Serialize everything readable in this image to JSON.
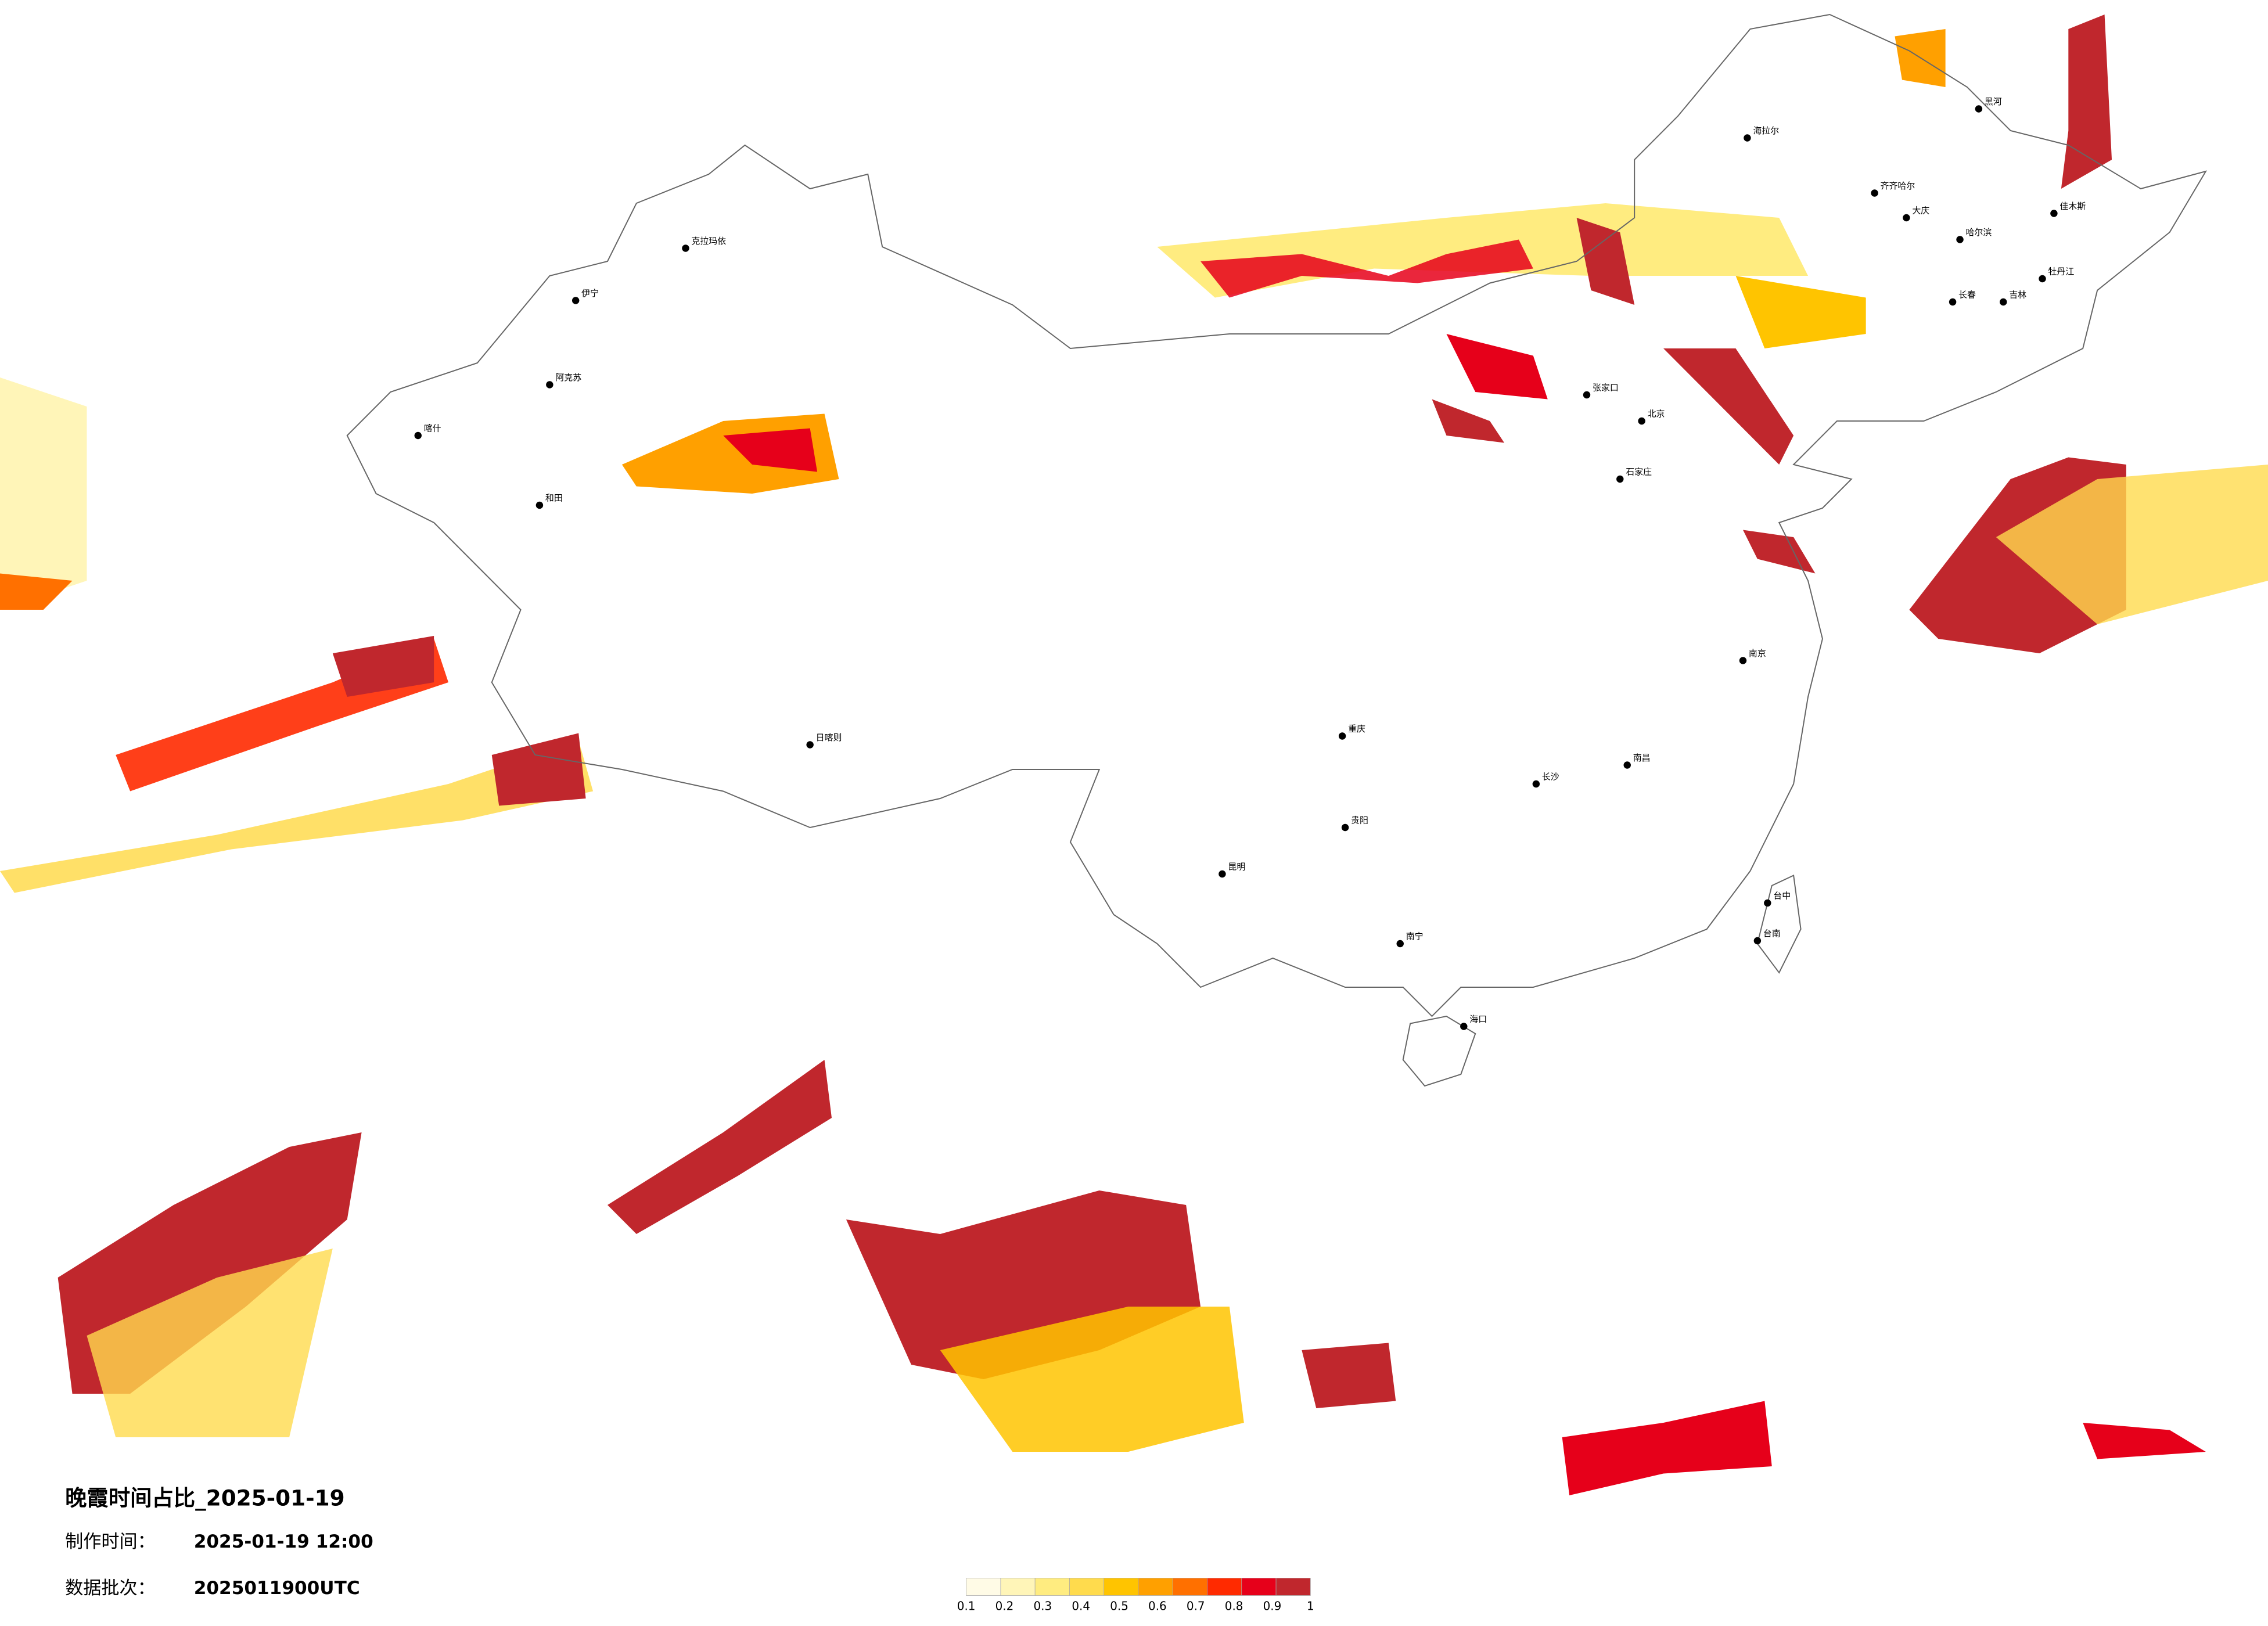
{
  "header": {
    "title": "晚霞时间占比_2025-01-19",
    "made_label": "制作时间：",
    "made_value": "2025-01-19 12:00",
    "batch_label": "数据批次：",
    "batch_value": "2025011900UTC"
  },
  "colorbar": {
    "ticks": [
      0.1,
      0.2,
      0.3,
      0.4,
      0.5,
      0.6,
      0.7,
      0.8,
      0.9,
      1
    ],
    "colors": [
      "#fffbe6",
      "#fff5b8",
      "#ffec80",
      "#ffdb4d",
      "#ffc400",
      "#ffa000",
      "#ff7000",
      "#ff2a00",
      "#e6001a",
      "#c0272d"
    ]
  },
  "cities": [
    "海拉尔",
    "齐齐哈尔",
    "大庆",
    "哈尔滨",
    "长春",
    "吉林",
    "牡丹江",
    "佳木斯",
    "黑河",
    "张家口",
    "北京",
    "石家庄",
    "克拉玛依",
    "伊宁",
    "阿克苏",
    "喀什",
    "和田",
    "日喀则",
    "重庆",
    "贵阳",
    "昆明",
    "南宁",
    "长沙",
    "南昌",
    "海口",
    "台中",
    "台南",
    "南京"
  ]
}
